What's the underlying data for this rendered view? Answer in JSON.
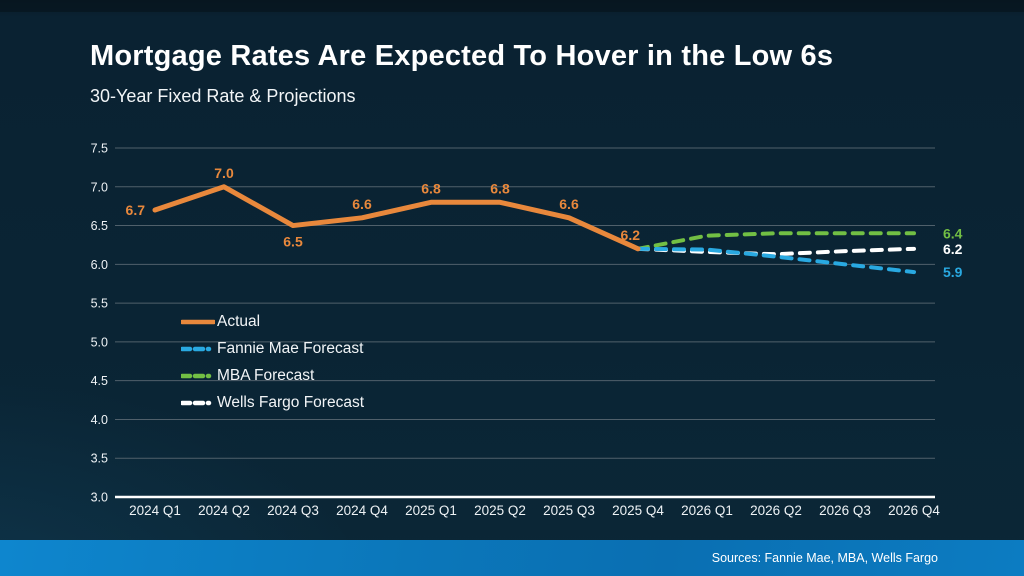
{
  "footer": {
    "sources": "Sources: Fannie Mae, MBA, Wells Fargo"
  },
  "colors": {
    "background": "#0a2434",
    "grid": "#50606b",
    "axis_line": "#ffffff",
    "tick_label": "#eef2f5",
    "footer_bar": "#0c7cc2"
  },
  "chart_data": {
    "type": "line",
    "title": "Mortgage Rates Are Expected To Hover in the Low 6s",
    "subtitle": "30-Year Fixed Rate & Projections",
    "xlabel": "",
    "ylabel": "",
    "ylim": [
      3.0,
      7.5
    ],
    "ytick_step": 0.5,
    "grid": true,
    "legend_position": "inside-left",
    "categories": [
      "2024 Q1",
      "2024 Q2",
      "2024 Q3",
      "2024 Q4",
      "2025 Q1",
      "2025 Q2",
      "2025 Q3",
      "2025 Q4",
      "2026 Q1",
      "2026 Q2",
      "2026 Q3",
      "2026 Q4"
    ],
    "series": [
      {
        "name": "Actual",
        "color": "#e8883c",
        "style": "solid",
        "start_index": 0,
        "values": [
          6.7,
          7.0,
          6.5,
          6.6,
          6.8,
          6.8,
          6.6,
          6.2
        ],
        "point_labels": [
          "6.7",
          "7.0",
          "6.5",
          "6.6",
          "6.8",
          "6.8",
          "6.6",
          "6.2"
        ],
        "label_placements": [
          "left",
          "above",
          "below",
          "above",
          "above",
          "above",
          "above",
          "above-left"
        ]
      },
      {
        "name": "Fannie Mae Forecast",
        "color": "#29a9e1",
        "style": "dashed",
        "start_index": 7,
        "values": [
          6.2,
          6.19,
          6.1,
          6.0,
          5.9
        ],
        "end_label": "5.9"
      },
      {
        "name": "MBA Forecast",
        "color": "#72bf44",
        "style": "dashed",
        "start_index": 7,
        "values": [
          6.2,
          6.37,
          6.4,
          6.4,
          6.4
        ],
        "end_label": "6.4"
      },
      {
        "name": "Wells Fargo Forecast",
        "color": "#ffffff",
        "style": "dashed",
        "start_index": 7,
        "values": [
          6.2,
          6.16,
          6.13,
          6.17,
          6.2
        ],
        "end_label": "6.2"
      }
    ],
    "draw_order": [
      2,
      3,
      1,
      0
    ],
    "legend_order": [
      0,
      1,
      2,
      3
    ]
  }
}
